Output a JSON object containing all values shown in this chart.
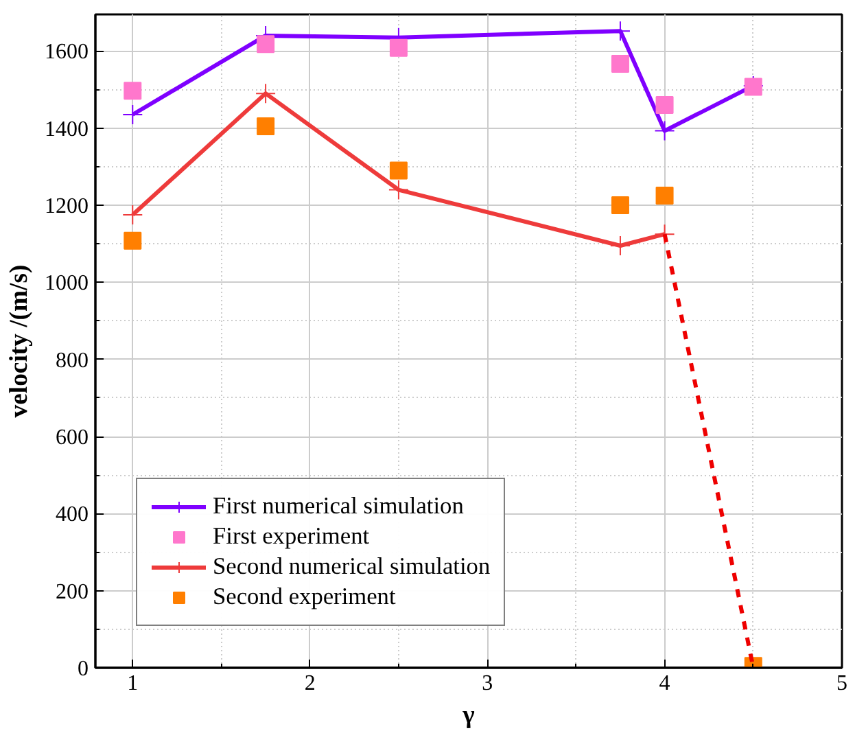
{
  "chart_data": {
    "type": "line",
    "xlabel": "γ",
    "ylabel": "velocity /(m/s)",
    "xlim": [
      0.79,
      5.0
    ],
    "xticks": [
      1,
      2,
      3,
      4,
      5
    ],
    "ylim": [
      0,
      1695
    ],
    "yticks": [
      0,
      200,
      400,
      600,
      800,
      1000,
      1200,
      1400,
      1600
    ],
    "grid": true,
    "legend": "bottom left",
    "series": [
      {
        "name": "First numerical simulation",
        "marker": "cross",
        "color": "#7f00ff",
        "x": [
          1,
          1.75,
          2.5,
          3.75,
          4,
          4.5
        ],
        "values": [
          1435,
          1640,
          1635,
          1652,
          1393,
          1510
        ]
      },
      {
        "name": "First experiment",
        "type": "scatter",
        "marker": "square",
        "color": "#ff77cc",
        "x": [
          1,
          1.75,
          2.5,
          3.75,
          4,
          4.5
        ],
        "values": [
          1497,
          1618,
          1608,
          1567,
          1460,
          1507
        ]
      },
      {
        "name": "Second numerical simulation",
        "marker": "cross",
        "color": "#ee3b3b",
        "x": [
          1,
          1.75,
          2.5,
          3.75,
          4
        ],
        "values": [
          1175,
          1490,
          1240,
          1095,
          1125
        ]
      },
      {
        "name": "Second experiment",
        "type": "scatter",
        "marker": "square",
        "color": "#ff7f00",
        "x": [
          1,
          1.75,
          2.5,
          3.75,
          4,
          4.5
        ],
        "values": [
          1108,
          1405,
          1290,
          1200,
          1225,
          5
        ]
      },
      {
        "marker": "none",
        "line_style": "dashed",
        "color": "#ee0000",
        "x": [
          4,
          4.5
        ],
        "values": [
          1125,
          0
        ]
      }
    ]
  }
}
